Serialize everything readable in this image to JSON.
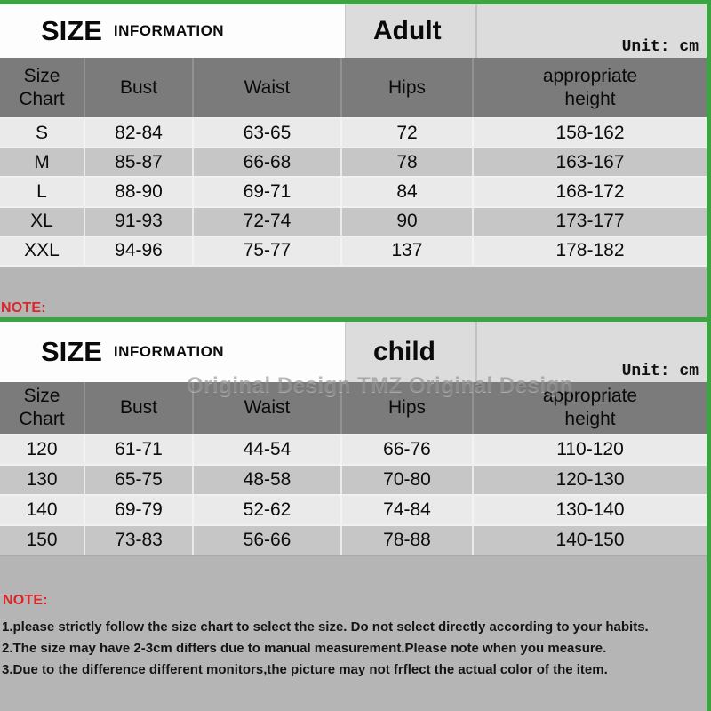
{
  "colors": {
    "accent_green": "#3ca541",
    "header_row_gray": "#7b7b7b",
    "row_light": "#eaeaea",
    "row_dark": "#c6c6c6",
    "panel_gray": "#b5b5b5",
    "title_cell_gray": "#dcdcdc",
    "note_red": "#d9262a"
  },
  "adult_header": {
    "title": "SIZE",
    "subtitle": "INFORMATION",
    "category": "Adult",
    "unit": "Unit: cm"
  },
  "child_header": {
    "title": "SIZE",
    "subtitle": "INFORMATION",
    "category": "child",
    "unit": "Unit: cm"
  },
  "mid_note_label": "NOTE:",
  "watermark": "Original Design TMZ Original Design",
  "footer": {
    "note_label": "NOTE:",
    "notes": [
      "1.please strictly follow the size chart to select the size. Do not select directly according to your habits.",
      "2.The size may have 2-3cm differs due to manual measurement.Please note when you measure.",
      "3.Due to the difference different monitors,the picture may not frflect the actual color of the item."
    ]
  },
  "chart_data": [
    {
      "type": "table",
      "title": "SIZE INFORMATION - Adult",
      "unit": "cm",
      "columns": [
        "Size Chart",
        "Bust",
        "Waist",
        "Hips",
        "appropriate height"
      ],
      "rows": [
        [
          "S",
          "82-84",
          "63-65",
          "72",
          "158-162"
        ],
        [
          "M",
          "85-87",
          "66-68",
          "78",
          "163-167"
        ],
        [
          "L",
          "88-90",
          "69-71",
          "84",
          "168-172"
        ],
        [
          "XL",
          "91-93",
          "72-74",
          "90",
          "173-177"
        ],
        [
          "XXL",
          "94-96",
          "75-77",
          "137",
          "178-182"
        ]
      ]
    },
    {
      "type": "table",
      "title": "SIZE INFORMATION - child",
      "unit": "cm",
      "columns": [
        "Size Chart",
        "Bust",
        "Waist",
        "Hips",
        "appropriate height"
      ],
      "rows": [
        [
          "120",
          "61-71",
          "44-54",
          "66-76",
          "110-120"
        ],
        [
          "130",
          "65-75",
          "48-58",
          "70-80",
          "120-130"
        ],
        [
          "140",
          "69-79",
          "52-62",
          "74-84",
          "130-140"
        ],
        [
          "150",
          "73-83",
          "56-66",
          "78-88",
          "140-150"
        ]
      ]
    }
  ]
}
